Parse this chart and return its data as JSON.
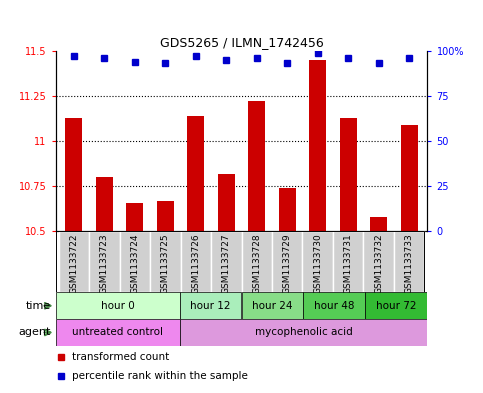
{
  "title": "GDS5265 / ILMN_1742456",
  "samples": [
    "GSM1133722",
    "GSM1133723",
    "GSM1133724",
    "GSM1133725",
    "GSM1133726",
    "GSM1133727",
    "GSM1133728",
    "GSM1133729",
    "GSM1133730",
    "GSM1133731",
    "GSM1133732",
    "GSM1133733"
  ],
  "bar_values": [
    11.13,
    10.8,
    10.66,
    10.67,
    11.14,
    10.82,
    11.22,
    10.74,
    11.45,
    11.13,
    10.58,
    11.09
  ],
  "percentile_values": [
    97,
    96,
    94,
    93,
    97,
    95,
    96,
    93,
    99,
    96,
    93,
    96
  ],
  "bar_color": "#cc0000",
  "percentile_color": "#0000cc",
  "ylim_left": [
    10.5,
    11.5
  ],
  "ylim_right": [
    0,
    100
  ],
  "yticks_left": [
    10.5,
    10.75,
    11.0,
    11.25,
    11.5
  ],
  "yticks_right": [
    0,
    25,
    50,
    75,
    100
  ],
  "ytick_labels_left": [
    "10.5",
    "10.75",
    "11",
    "11.25",
    "11.5"
  ],
  "ytick_labels_right": [
    "0",
    "25",
    "50",
    "75",
    "100%"
  ],
  "time_groups": [
    {
      "label": "hour 0",
      "start": 0,
      "end": 4,
      "color": "#ccffcc"
    },
    {
      "label": "hour 12",
      "start": 4,
      "end": 6,
      "color": "#aaeebb"
    },
    {
      "label": "hour 24",
      "start": 6,
      "end": 8,
      "color": "#88dd88"
    },
    {
      "label": "hour 48",
      "start": 8,
      "end": 10,
      "color": "#55cc55"
    },
    {
      "label": "hour 72",
      "start": 10,
      "end": 12,
      "color": "#33bb33"
    }
  ],
  "agent_groups": [
    {
      "label": "untreated control",
      "start": 0,
      "end": 4,
      "color": "#ee88ee"
    },
    {
      "label": "mycophenolic acid",
      "start": 4,
      "end": 12,
      "color": "#dd99dd"
    }
  ],
  "legend_items": [
    {
      "color": "#cc0000",
      "label": "transformed count"
    },
    {
      "color": "#0000cc",
      "label": "percentile rank within the sample"
    }
  ],
  "bar_width": 0.55,
  "sample_bg_color": "#d0d0d0",
  "sample_edge_color": "#ffffff"
}
